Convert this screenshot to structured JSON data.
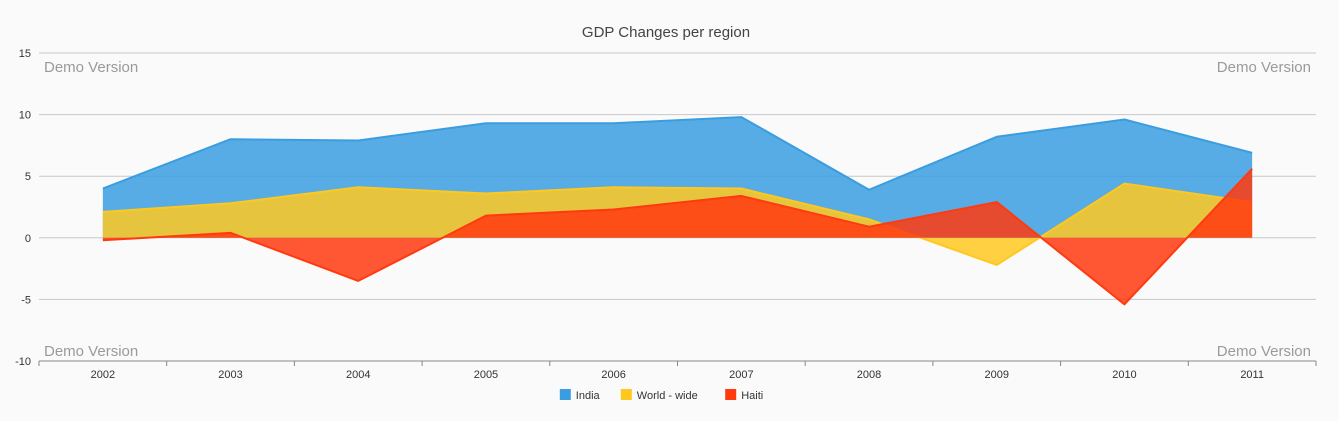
{
  "chart_data": {
    "type": "area",
    "title": "GDP Changes per region",
    "xlabel": "",
    "ylabel": "",
    "categories": [
      "2002",
      "2003",
      "2004",
      "2005",
      "2006",
      "2007",
      "2008",
      "2009",
      "2010",
      "2011"
    ],
    "y_ticks": [
      "15",
      "10",
      "5",
      "0",
      "-5",
      "-10"
    ],
    "ylim": [
      -10,
      15
    ],
    "grid": true,
    "legend_position": "bottom-center",
    "series": [
      {
        "name": "India",
        "color": "#3a9de0",
        "values": [
          4.0,
          8.0,
          7.9,
          9.3,
          9.3,
          9.8,
          3.9,
          8.2,
          9.6,
          6.9
        ]
      },
      {
        "name": "World - wide",
        "color": "#ffc820",
        "values": [
          2.1,
          2.8,
          4.1,
          3.6,
          4.1,
          4.0,
          1.5,
          -2.2,
          4.4,
          2.9
        ]
      },
      {
        "name": "Haiti",
        "color": "#ff3a0f",
        "values": [
          -0.2,
          0.4,
          -3.5,
          1.8,
          2.3,
          3.4,
          0.9,
          2.9,
          -5.4,
          5.6
        ]
      }
    ],
    "watermarks": [
      "Demo Version",
      "Demo Version",
      "Demo Version",
      "Demo Version"
    ]
  }
}
